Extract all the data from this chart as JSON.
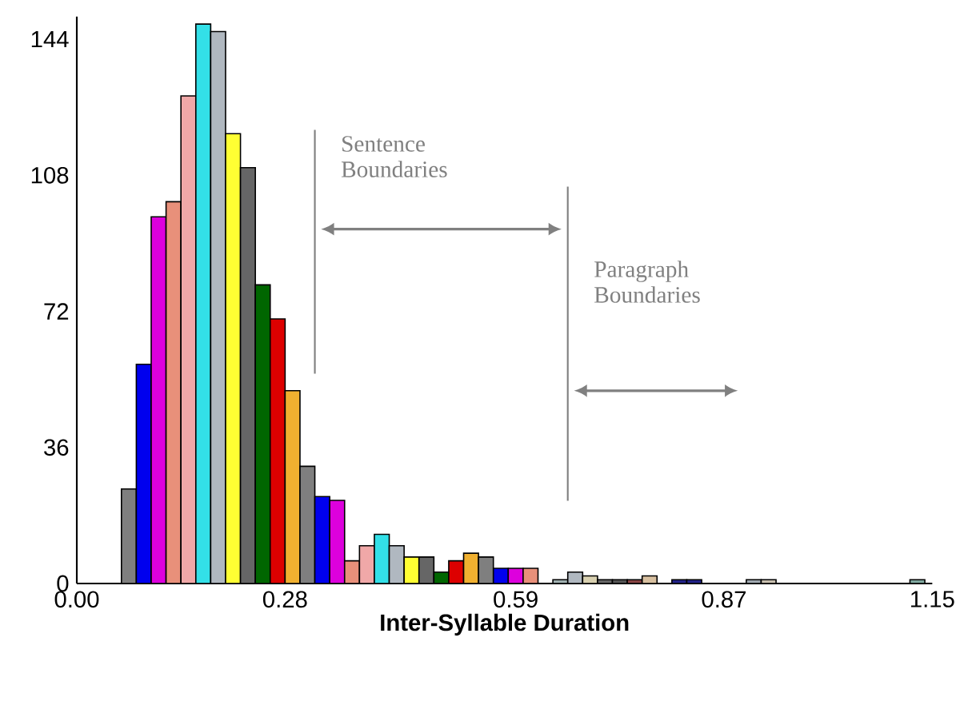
{
  "chart_data": {
    "type": "histogram",
    "xlabel": "Inter-Syllable Duration",
    "bins": [
      0.06,
      0.08,
      0.1,
      0.12,
      0.14,
      0.16,
      0.18,
      0.2,
      0.22,
      0.24,
      0.26,
      0.28,
      0.3,
      0.32,
      0.34,
      0.36,
      0.38,
      0.4,
      0.42,
      0.44,
      0.46,
      0.48,
      0.5,
      0.52,
      0.54,
      0.56,
      0.58,
      0.6,
      0.62,
      0.64,
      0.66,
      0.68,
      0.7,
      0.72,
      0.74,
      0.76,
      0.78,
      0.8,
      0.82,
      0.84,
      0.86,
      0.88,
      0.9,
      0.92,
      0.94,
      0.96,
      0.98,
      1.0,
      1.02,
      1.04,
      1.06,
      1.08,
      1.1,
      1.12,
      1.14
    ],
    "values": [
      25,
      58,
      97,
      101,
      129,
      148,
      146,
      119,
      110,
      79,
      70,
      51,
      31,
      23,
      22,
      6,
      10,
      13,
      10,
      7,
      7,
      3,
      6,
      8,
      7,
      4,
      4,
      4,
      0,
      1,
      3,
      2,
      1,
      1,
      1,
      2,
      0,
      1,
      1,
      0,
      0,
      0,
      1,
      1,
      0,
      0,
      0,
      0,
      0,
      0,
      0,
      0,
      0,
      1
    ],
    "colors": [
      "#7f7f7f",
      "#0000ee",
      "#dd00dd",
      "#e8907a",
      "#f0a8a8",
      "#33e0e8",
      "#b0b8c0",
      "#ffff33",
      "#666666",
      "#006600",
      "#dd0000",
      "#f0b030",
      "#7f7f7f",
      "#0000ee",
      "#dd00dd",
      "#e8907a",
      "#f0a8a8",
      "#33e0e8",
      "#b0b8c0",
      "#ffff33",
      "#666666",
      "#006600",
      "#dd0000",
      "#f0b030",
      "#7f7f7f",
      "#0000ee",
      "#dd00dd",
      "#e8907a",
      "#f0a8a8",
      "#a0b0b0",
      "#b0b8c0",
      "#d8d0b0",
      "#666666",
      "#555555",
      "#884444",
      "#d8c0a0",
      "#7f7f7f",
      "#222288",
      "#222288",
      "#e8907a",
      "#f0a8a8",
      "#33e0e8",
      "#a0a8b0",
      "#c8c0b0",
      "#666666",
      "#006600",
      "#dd0000",
      "#f0b030",
      "#7f7f7f",
      "#0000ee",
      "#dd00dd",
      "#e8907a",
      "#f0a8a8",
      "#80a8a0"
    ],
    "xlim": [
      0,
      1.15
    ],
    "ylim": [
      0,
      150
    ],
    "xticks": [
      {
        "value": 0,
        "label": "0.00"
      },
      0.28,
      0.59,
      0.87,
      1.15
    ],
    "yticks": [
      0,
      36,
      72,
      108,
      144
    ],
    "ref_lines": [
      {
        "axis": "x",
        "value": 0.32,
        "label": "Sentence Boundaries",
        "color": "#808080"
      },
      {
        "axis": "x",
        "value": 0.66,
        "label": "Paragraph Boundaries",
        "color": "#808080"
      }
    ]
  }
}
